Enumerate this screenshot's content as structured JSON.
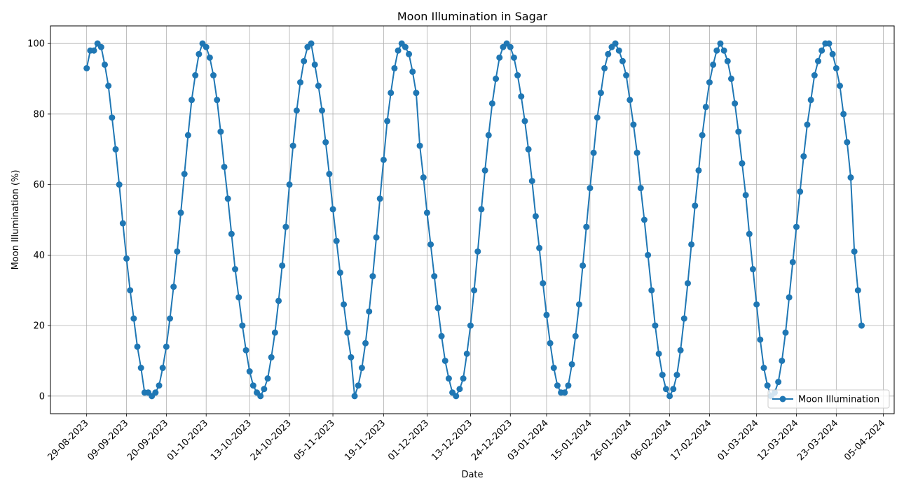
{
  "chart_data": {
    "type": "line",
    "title": "Moon Illumination in Sagar",
    "xlabel": "Date",
    "ylabel": "Moon Illumination (%)",
    "ylim": [
      -5,
      105
    ],
    "xlim": [
      "2023-08-19",
      "2024-04-08"
    ],
    "grid": true,
    "legend_position": "bottom-right",
    "color": "#1f77b4",
    "x_ticks": [
      "2023-08-29",
      "2023-09-09",
      "2023-09-20",
      "2023-10-01",
      "2023-10-13",
      "2023-10-24",
      "2023-11-05",
      "2023-11-19",
      "2023-12-01",
      "2023-12-13",
      "2023-12-24",
      "2024-01-03",
      "2024-01-15",
      "2024-01-26",
      "2024-02-06",
      "2024-02-17",
      "2024-03-01",
      "2024-03-12",
      "2024-03-23",
      "2024-04-05"
    ],
    "x_tick_labels": [
      "29-08-2023",
      "09-09-2023",
      "20-09-2023",
      "01-10-2023",
      "13-10-2023",
      "24-10-2023",
      "05-11-2023",
      "19-11-2023",
      "01-12-2023",
      "13-12-2023",
      "24-12-2023",
      "03-01-2024",
      "15-01-2024",
      "26-01-2024",
      "06-02-2024",
      "17-02-2024",
      "01-03-2024",
      "12-03-2024",
      "23-03-2024",
      "05-04-2024"
    ],
    "y_ticks": [
      0,
      20,
      40,
      60,
      80,
      100
    ],
    "y_tick_labels": [
      "0",
      "20",
      "40",
      "60",
      "80",
      "100"
    ],
    "series": [
      {
        "name": "Moon Illumination",
        "x": [
          "2023-08-29",
          "2023-08-30",
          "2023-08-31",
          "2023-09-01",
          "2023-09-02",
          "2023-09-03",
          "2023-09-04",
          "2023-09-05",
          "2023-09-06",
          "2023-09-07",
          "2023-09-08",
          "2023-09-09",
          "2023-09-10",
          "2023-09-11",
          "2023-09-12",
          "2023-09-13",
          "2023-09-14",
          "2023-09-15",
          "2023-09-16",
          "2023-09-17",
          "2023-09-18",
          "2023-09-19",
          "2023-09-20",
          "2023-09-21",
          "2023-09-22",
          "2023-09-23",
          "2023-09-24",
          "2023-09-25",
          "2023-09-26",
          "2023-09-27",
          "2023-09-28",
          "2023-09-29",
          "2023-09-30",
          "2023-10-01",
          "2023-10-02",
          "2023-10-03",
          "2023-10-04",
          "2023-10-05",
          "2023-10-06",
          "2023-10-07",
          "2023-10-08",
          "2023-10-09",
          "2023-10-10",
          "2023-10-11",
          "2023-10-12",
          "2023-10-13",
          "2023-10-14",
          "2023-10-15",
          "2023-10-16",
          "2023-10-17",
          "2023-10-18",
          "2023-10-19",
          "2023-10-20",
          "2023-10-21",
          "2023-10-22",
          "2023-10-23",
          "2023-10-24",
          "2023-10-25",
          "2023-10-26",
          "2023-10-27",
          "2023-10-28",
          "2023-10-29",
          "2023-10-30",
          "2023-10-31",
          "2023-11-01",
          "2023-11-02",
          "2023-11-03",
          "2023-11-04",
          "2023-11-05",
          "2023-11-06",
          "2023-11-07",
          "2023-11-08",
          "2023-11-09",
          "2023-11-10",
          "2023-11-11",
          "2023-11-12",
          "2023-11-13",
          "2023-11-14",
          "2023-11-15",
          "2023-11-16",
          "2023-11-17",
          "2023-11-18",
          "2023-11-19",
          "2023-11-20",
          "2023-11-21",
          "2023-11-22",
          "2023-11-23",
          "2023-11-24",
          "2023-11-25",
          "2023-11-26",
          "2023-11-27",
          "2023-11-28",
          "2023-11-29",
          "2023-11-30",
          "2023-12-01",
          "2023-12-02",
          "2023-12-03",
          "2023-12-04",
          "2023-12-05",
          "2023-12-06",
          "2023-12-07",
          "2023-12-08",
          "2023-12-09",
          "2023-12-10",
          "2023-12-11",
          "2023-12-12",
          "2023-12-13",
          "2023-12-14",
          "2023-12-15",
          "2023-12-16",
          "2023-12-17",
          "2023-12-18",
          "2023-12-19",
          "2023-12-20",
          "2023-12-21",
          "2023-12-22",
          "2023-12-23",
          "2023-12-24",
          "2023-12-25",
          "2023-12-26",
          "2023-12-27",
          "2023-12-28",
          "2023-12-29",
          "2023-12-30",
          "2023-12-31",
          "2024-01-01",
          "2024-01-02",
          "2024-01-03",
          "2024-01-04",
          "2024-01-05",
          "2024-01-06",
          "2024-01-07",
          "2024-01-08",
          "2024-01-09",
          "2024-01-10",
          "2024-01-11",
          "2024-01-12",
          "2024-01-13",
          "2024-01-14",
          "2024-01-15",
          "2024-01-16",
          "2024-01-17",
          "2024-01-18",
          "2024-01-19",
          "2024-01-20",
          "2024-01-21",
          "2024-01-22",
          "2024-01-23",
          "2024-01-24",
          "2024-01-25",
          "2024-01-26",
          "2024-01-27",
          "2024-01-28",
          "2024-01-29",
          "2024-01-30",
          "2024-01-31",
          "2024-02-01",
          "2024-02-02",
          "2024-02-03",
          "2024-02-04",
          "2024-02-05",
          "2024-02-06",
          "2024-02-07",
          "2024-02-08",
          "2024-02-09",
          "2024-02-10",
          "2024-02-11",
          "2024-02-12",
          "2024-02-13",
          "2024-02-14",
          "2024-02-15",
          "2024-02-16",
          "2024-02-17",
          "2024-02-18",
          "2024-02-19",
          "2024-02-20",
          "2024-02-21",
          "2024-02-22",
          "2024-02-23",
          "2024-02-24",
          "2024-02-25",
          "2024-02-26",
          "2024-02-27",
          "2024-02-28",
          "2024-02-29",
          "2024-03-01",
          "2024-03-02",
          "2024-03-03",
          "2024-03-04",
          "2024-03-05",
          "2024-03-06",
          "2024-03-07",
          "2024-03-08",
          "2024-03-09",
          "2024-03-10",
          "2024-03-11",
          "2024-03-12",
          "2024-03-13",
          "2024-03-14",
          "2024-03-15",
          "2024-03-16",
          "2024-03-17",
          "2024-03-18",
          "2024-03-19",
          "2024-03-20",
          "2024-03-21",
          "2024-03-22",
          "2024-03-23",
          "2024-03-24",
          "2024-03-25",
          "2024-03-26",
          "2024-03-27",
          "2024-03-28",
          "2024-03-29",
          "2024-03-30"
        ],
        "values": [
          93,
          98,
          98,
          100,
          99,
          94,
          88,
          79,
          70,
          60,
          49,
          39,
          30,
          22,
          14,
          8,
          1,
          1,
          0,
          1,
          3,
          8,
          14,
          22,
          31,
          41,
          52,
          63,
          74,
          84,
          91,
          97,
          100,
          99,
          96,
          91,
          84,
          75,
          65,
          56,
          46,
          36,
          28,
          20,
          13,
          7,
          3,
          1,
          0,
          2,
          5,
          11,
          18,
          27,
          37,
          48,
          60,
          71,
          81,
          89,
          95,
          99,
          100,
          94,
          88,
          81,
          72,
          63,
          53,
          44,
          35,
          26,
          18,
          11,
          0,
          3,
          8,
          15,
          24,
          34,
          45,
          56,
          67,
          78,
          86,
          93,
          98,
          100,
          99,
          97,
          92,
          86,
          71,
          62,
          52,
          43,
          34,
          25,
          17,
          10,
          5,
          1,
          0,
          2,
          5,
          12,
          20,
          30,
          41,
          53,
          64,
          74,
          83,
          90,
          96,
          99,
          100,
          99,
          96,
          91,
          85,
          78,
          70,
          61,
          51,
          42,
          32,
          23,
          15,
          8,
          3,
          1,
          1,
          3,
          9,
          17,
          26,
          37,
          48,
          59,
          69,
          79,
          86,
          93,
          97,
          99,
          100,
          98,
          95,
          91,
          84,
          77,
          69,
          59,
          50,
          40,
          30,
          20,
          12,
          6,
          2,
          0,
          2,
          6,
          13,
          22,
          32,
          43,
          54,
          64,
          74,
          82,
          89,
          94,
          98,
          100,
          98,
          95,
          90,
          83,
          75,
          66,
          57,
          46,
          36,
          26,
          16,
          8,
          3,
          0,
          1,
          4,
          10,
          18,
          28,
          38,
          48,
          58,
          68,
          77,
          84,
          91,
          95,
          98,
          100,
          100,
          97,
          93,
          88,
          80,
          72,
          62,
          41,
          30,
          20
        ]
      }
    ]
  }
}
